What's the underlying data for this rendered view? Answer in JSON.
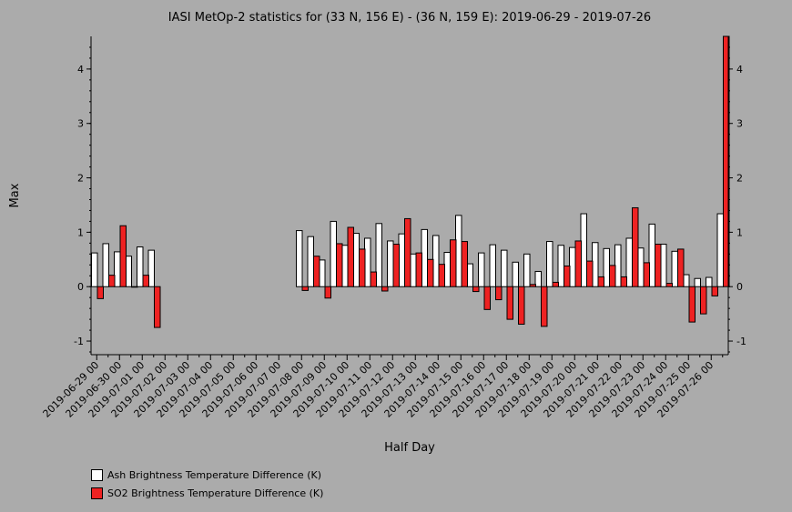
{
  "chart_data": {
    "type": "bar",
    "title": "IASI MetOp-2 statistics for (33 N, 156 E) - (36 N, 159 E): 2019-06-29 - 2019-07-26",
    "xlabel": "Half Day",
    "ylabel": "Max",
    "ylim": [
      -1.25,
      4.6
    ],
    "yticks": [
      -1,
      0,
      1,
      2,
      3,
      4
    ],
    "categories": [
      "2019-06-29 00",
      "2019-06-29 12",
      "2019-06-30 00",
      "2019-06-30 12",
      "2019-07-01 00",
      "2019-07-01 12",
      "2019-07-02 00",
      "2019-07-02 12",
      "2019-07-03 00",
      "2019-07-03 12",
      "2019-07-04 00",
      "2019-07-04 12",
      "2019-07-05 00",
      "2019-07-05 12",
      "2019-07-06 00",
      "2019-07-06 12",
      "2019-07-07 00",
      "2019-07-07 12",
      "2019-07-08 00",
      "2019-07-08 12",
      "2019-07-09 00",
      "2019-07-09 12",
      "2019-07-10 00",
      "2019-07-10 12",
      "2019-07-11 00",
      "2019-07-11 12",
      "2019-07-12 00",
      "2019-07-12 12",
      "2019-07-13 00",
      "2019-07-13 12",
      "2019-07-14 00",
      "2019-07-14 12",
      "2019-07-15 00",
      "2019-07-15 12",
      "2019-07-16 00",
      "2019-07-16 12",
      "2019-07-17 00",
      "2019-07-17 12",
      "2019-07-18 00",
      "2019-07-18 12",
      "2019-07-19 00",
      "2019-07-19 12",
      "2019-07-20 00",
      "2019-07-20 12",
      "2019-07-21 00",
      "2019-07-21 12",
      "2019-07-22 00",
      "2019-07-22 12",
      "2019-07-23 00",
      "2019-07-23 12",
      "2019-07-24 00",
      "2019-07-24 12",
      "2019-07-25 00",
      "2019-07-25 12",
      "2019-07-26 00",
      "2019-07-26 12"
    ],
    "tick_labels": [
      "2019-06-29 00",
      "2019-06-30 00",
      "2019-07-01 00",
      "2019-07-02 00",
      "2019-07-03 00",
      "2019-07-04 00",
      "2019-07-05 00",
      "2019-07-06 00",
      "2019-07-07 00",
      "2019-07-08 00",
      "2019-07-09 00",
      "2019-07-10 00",
      "2019-07-11 00",
      "2019-07-12 00",
      "2019-07-13 00",
      "2019-07-14 00",
      "2019-07-15 00",
      "2019-07-16 00",
      "2019-07-17 00",
      "2019-07-18 00",
      "2019-07-19 00",
      "2019-07-20 00",
      "2019-07-21 00",
      "2019-07-22 00",
      "2019-07-23 00",
      "2019-07-24 00",
      "2019-07-25 00",
      "2019-07-26 00"
    ],
    "series": [
      {
        "name": "Ash Brightness Temperature Difference (K)",
        "color": "#ffffff",
        "values": [
          0.62,
          0.79,
          0.64,
          0.56,
          0.73,
          0.67,
          null,
          null,
          null,
          null,
          null,
          null,
          null,
          null,
          null,
          null,
          null,
          null,
          1.03,
          0.92,
          0.49,
          1.2,
          0.76,
          0.98,
          0.89,
          1.16,
          0.84,
          0.97,
          0.6,
          1.05,
          0.94,
          0.63,
          1.31,
          0.42,
          0.62,
          0.77,
          0.67,
          0.45,
          0.6,
          0.28,
          0.83,
          0.76,
          0.72,
          1.34,
          0.81,
          0.7,
          0.77,
          0.89,
          0.71,
          1.15,
          0.78,
          0.65,
          0.22,
          0.15,
          0.17,
          1.34
        ]
      },
      {
        "name": "SO2 Brightness Temperature Difference (K)",
        "color": "#ee2222",
        "values": [
          -0.22,
          0.21,
          1.12,
          -0.01,
          0.21,
          -0.75,
          null,
          null,
          null,
          null,
          null,
          null,
          null,
          null,
          null,
          null,
          null,
          null,
          -0.07,
          0.56,
          -0.21,
          0.79,
          1.09,
          0.69,
          0.27,
          -0.08,
          0.78,
          1.25,
          0.62,
          0.5,
          0.41,
          0.86,
          0.83,
          -0.09,
          -0.42,
          -0.24,
          -0.6,
          -0.69,
          0.04,
          -0.73,
          0.08,
          0.38,
          0.84,
          0.47,
          0.18,
          0.39,
          0.18,
          1.45,
          0.44,
          0.78,
          0.06,
          0.69,
          -0.65,
          -0.5,
          -0.17,
          4.6
        ]
      }
    ]
  },
  "legend": {
    "items": [
      {
        "label": "Ash Brightness Temperature Difference (K)",
        "color": "#ffffff"
      },
      {
        "label": "SO2 Brightness Temperature Difference (K)",
        "color": "#ee2222"
      }
    ]
  }
}
